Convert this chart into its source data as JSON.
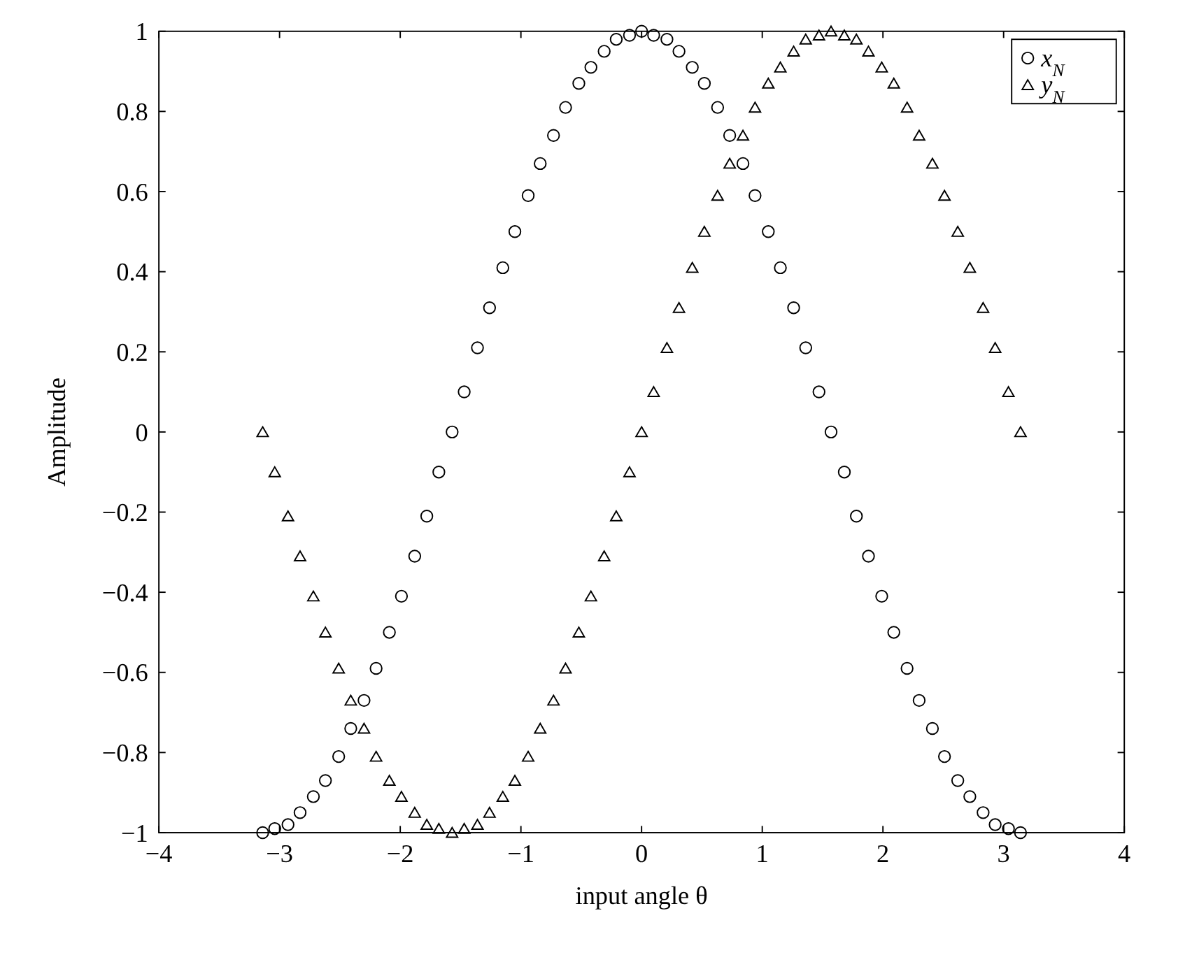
{
  "chart_data": {
    "type": "scatter",
    "xlabel": "input angle θ",
    "ylabel": "Amplitude",
    "xlim": [
      -4,
      4
    ],
    "ylim": [
      -1,
      1
    ],
    "xticks": [
      -4,
      -3,
      -2,
      -1,
      0,
      1,
      2,
      3,
      4
    ],
    "yticks": [
      -1,
      -0.8,
      -0.6,
      -0.4,
      -0.2,
      0,
      0.2,
      0.4,
      0.6,
      0.8,
      1
    ],
    "grid": false,
    "legend": "top right",
    "x": [
      -3.14,
      -3.04,
      -2.93,
      -2.83,
      -2.72,
      -2.62,
      -2.51,
      -2.41,
      -2.3,
      -2.2,
      -2.09,
      -1.99,
      -1.88,
      -1.78,
      -1.68,
      -1.57,
      -1.47,
      -1.36,
      -1.26,
      -1.15,
      -1.05,
      -0.94,
      -0.84,
      -0.73,
      -0.63,
      -0.52,
      -0.42,
      -0.31,
      -0.21,
      -0.1,
      0,
      0.1,
      0.21,
      0.31,
      0.42,
      0.52,
      0.63,
      0.73,
      0.84,
      0.94,
      1.05,
      1.15,
      1.26,
      1.36,
      1.47,
      1.57,
      1.68,
      1.78,
      1.88,
      1.99,
      2.09,
      2.2,
      2.3,
      2.41,
      2.51,
      2.62,
      2.72,
      2.83,
      2.93,
      3.04,
      3.14
    ],
    "series": [
      {
        "name": "x$_{N}$",
        "color": "#000000",
        "marker": "circle",
        "values": [
          -1,
          -0.99,
          -0.98,
          -0.95,
          -0.91,
          -0.87,
          -0.81,
          -0.74,
          -0.67,
          -0.59,
          -0.5,
          -0.41,
          -0.31,
          -0.21,
          -0.1,
          0,
          0.1,
          0.21,
          0.31,
          0.41,
          0.5,
          0.59,
          0.67,
          0.74,
          0.81,
          0.87,
          0.91,
          0.95,
          0.98,
          0.99,
          1,
          0.99,
          0.98,
          0.95,
          0.91,
          0.87,
          0.81,
          0.74,
          0.67,
          0.59,
          0.5,
          0.41,
          0.31,
          0.21,
          0.1,
          0,
          -0.1,
          -0.21,
          -0.31,
          -0.41,
          -0.5,
          -0.59,
          -0.67,
          -0.74,
          -0.81,
          -0.87,
          -0.91,
          -0.95,
          -0.98,
          -0.99,
          -1
        ]
      },
      {
        "name": "y$_{N}$",
        "color": "#000000",
        "marker": "triangle",
        "values": [
          0,
          -0.1,
          -0.21,
          -0.31,
          -0.41,
          -0.5,
          -0.59,
          -0.67,
          -0.74,
          -0.81,
          -0.87,
          -0.91,
          -0.95,
          -0.98,
          -0.99,
          -1,
          -0.99,
          -0.98,
          -0.95,
          -0.91,
          -0.87,
          -0.81,
          -0.74,
          -0.67,
          -0.59,
          -0.5,
          -0.41,
          -0.31,
          -0.21,
          -0.1,
          0,
          0.1,
          0.21,
          0.31,
          0.41,
          0.5,
          0.59,
          0.67,
          0.74,
          0.81,
          0.87,
          0.91,
          0.95,
          0.98,
          0.99,
          1,
          0.99,
          0.98,
          0.95,
          0.91,
          0.87,
          0.81,
          0.74,
          0.67,
          0.59,
          0.5,
          0.41,
          0.31,
          0.21,
          0.1,
          0
        ]
      }
    ]
  }
}
